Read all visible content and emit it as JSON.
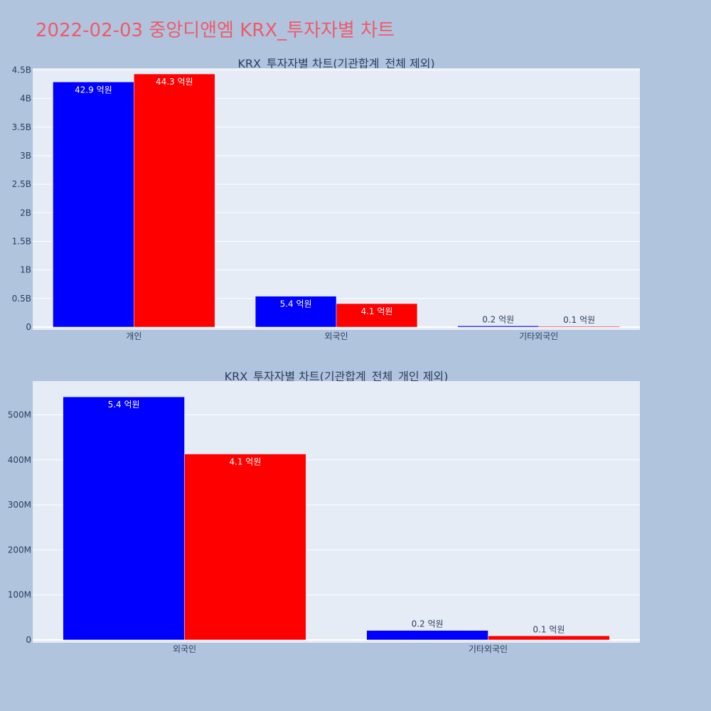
{
  "page_title": "2022-02-03 중앙디앤엠 KRX_투자자별 차트",
  "colors": {
    "background": "#b0c4de",
    "plot_bg": "#e5ecf6",
    "series_a": "#0000ff",
    "series_b": "#ff0000",
    "title": "#ef5a6a"
  },
  "chart_data": [
    {
      "type": "bar",
      "title": "KRX_투자자별 차트(기관합계_전체 제외)",
      "categories": [
        "개인",
        "외국인",
        "기타외국인"
      ],
      "series": [
        {
          "color": "#0000ff",
          "values": [
            4290000000,
            540000000,
            20000000
          ],
          "labels": [
            "42.9 억원",
            "5.4 억원",
            "0.2 억원"
          ]
        },
        {
          "color": "#ff0000",
          "values": [
            4430000000,
            410000000,
            10000000
          ],
          "labels": [
            "44.3 억원",
            "4.1 억원",
            "0.1 억원"
          ]
        }
      ],
      "ylim": [
        0,
        4530000000
      ],
      "yticks": [
        0,
        500000000,
        1000000000,
        1500000000,
        2000000000,
        2500000000,
        3000000000,
        3500000000,
        4000000000,
        4500000000
      ],
      "ytick_labels": [
        "0",
        "0.5B",
        "1B",
        "1.5B",
        "2B",
        "2.5B",
        "3B",
        "3.5B",
        "4B",
        "4.5B"
      ],
      "grid": true
    },
    {
      "type": "bar",
      "title": "KRX_투자자별 차트(기관합계_전체_개인 제외)",
      "categories": [
        "외국인",
        "기타외국인"
      ],
      "series": [
        {
          "color": "#0000ff",
          "values": [
            540000000,
            21000000
          ],
          "labels": [
            "5.4 억원",
            "0.2 억원"
          ]
        },
        {
          "color": "#ff0000",
          "values": [
            413000000,
            9000000
          ],
          "labels": [
            "4.1 억원",
            "0.1 억원"
          ]
        }
      ],
      "ylim": [
        0,
        575000000
      ],
      "yticks": [
        0,
        100000000,
        200000000,
        300000000,
        400000000,
        500000000
      ],
      "ytick_labels": [
        "0",
        "100M",
        "200M",
        "300M",
        "400M",
        "500M"
      ],
      "grid": true
    }
  ]
}
